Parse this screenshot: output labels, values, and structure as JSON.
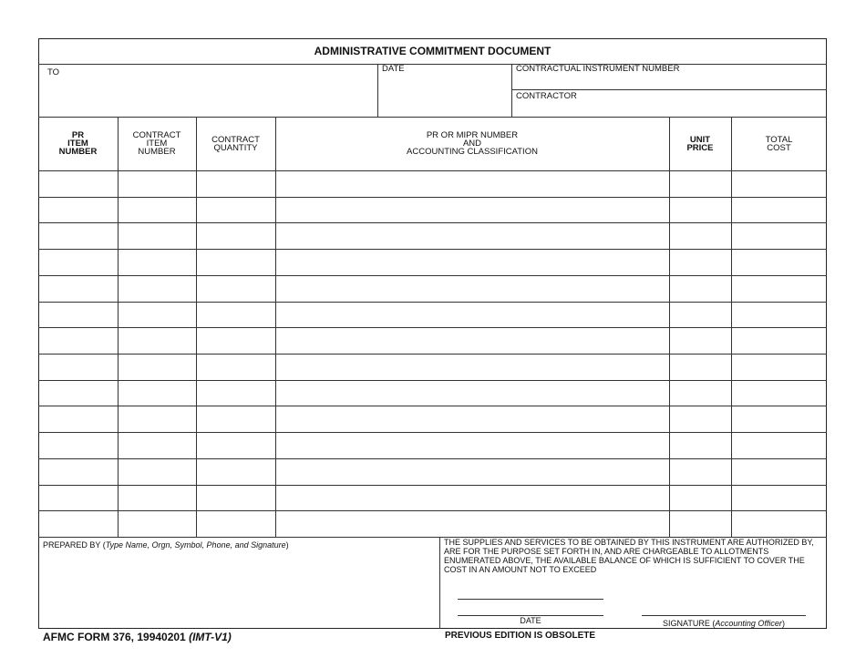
{
  "title": "ADMINISTRATIVE COMMITMENT DOCUMENT",
  "fields": {
    "to": "TO",
    "date": "DATE",
    "contract_number": "CONTRACTUAL INSTRUMENT NUMBER",
    "contractor": "CONTRACTOR"
  },
  "columns": [
    {
      "lines": [
        "PR",
        "ITEM",
        "NUMBER"
      ]
    },
    {
      "lines": [
        "CONTRACT",
        "ITEM",
        "NUMBER"
      ]
    },
    {
      "lines": [
        "CONTRACT",
        "QUANTITY"
      ]
    },
    {
      "lines": [
        "PR OR MIPR NUMBER",
        "AND",
        "ACCOUNTING CLASSIFICATION"
      ]
    },
    {
      "lines": [
        "UNIT",
        "PRICE"
      ]
    },
    {
      "lines": [
        "TOTAL",
        "COST"
      ]
    }
  ],
  "row_count": 14,
  "prepared_by": {
    "label": "PREPARED BY (",
    "italic": "Type Name, Orgn, Symbol, Phone, and Signature",
    "end": ")"
  },
  "certification": "THE SUPPLIES AND SERVICES TO BE OBTAINED BY THIS INSTRUMENT ARE AUTHORIZED BY, ARE FOR THE PURPOSE SET FORTH IN, AND ARE CHARGEABLE TO ALLOTMENTS ENUMERATED ABOVE, THE AVAILABLE BALANCE OF WHICH IS SUFFICIENT TO COVER THE COST IN AN AMOUNT NOT TO EXCEED",
  "sign_date": "DATE",
  "signature": {
    "label": "SIGNATURE (",
    "italic": "Accounting Officer",
    "end": ")"
  },
  "footer": {
    "form": "AFMC FORM 376, 19940201 ",
    "version": "(IMT-V1)",
    "notice": "PREVIOUS EDITION IS OBSOLETE"
  }
}
